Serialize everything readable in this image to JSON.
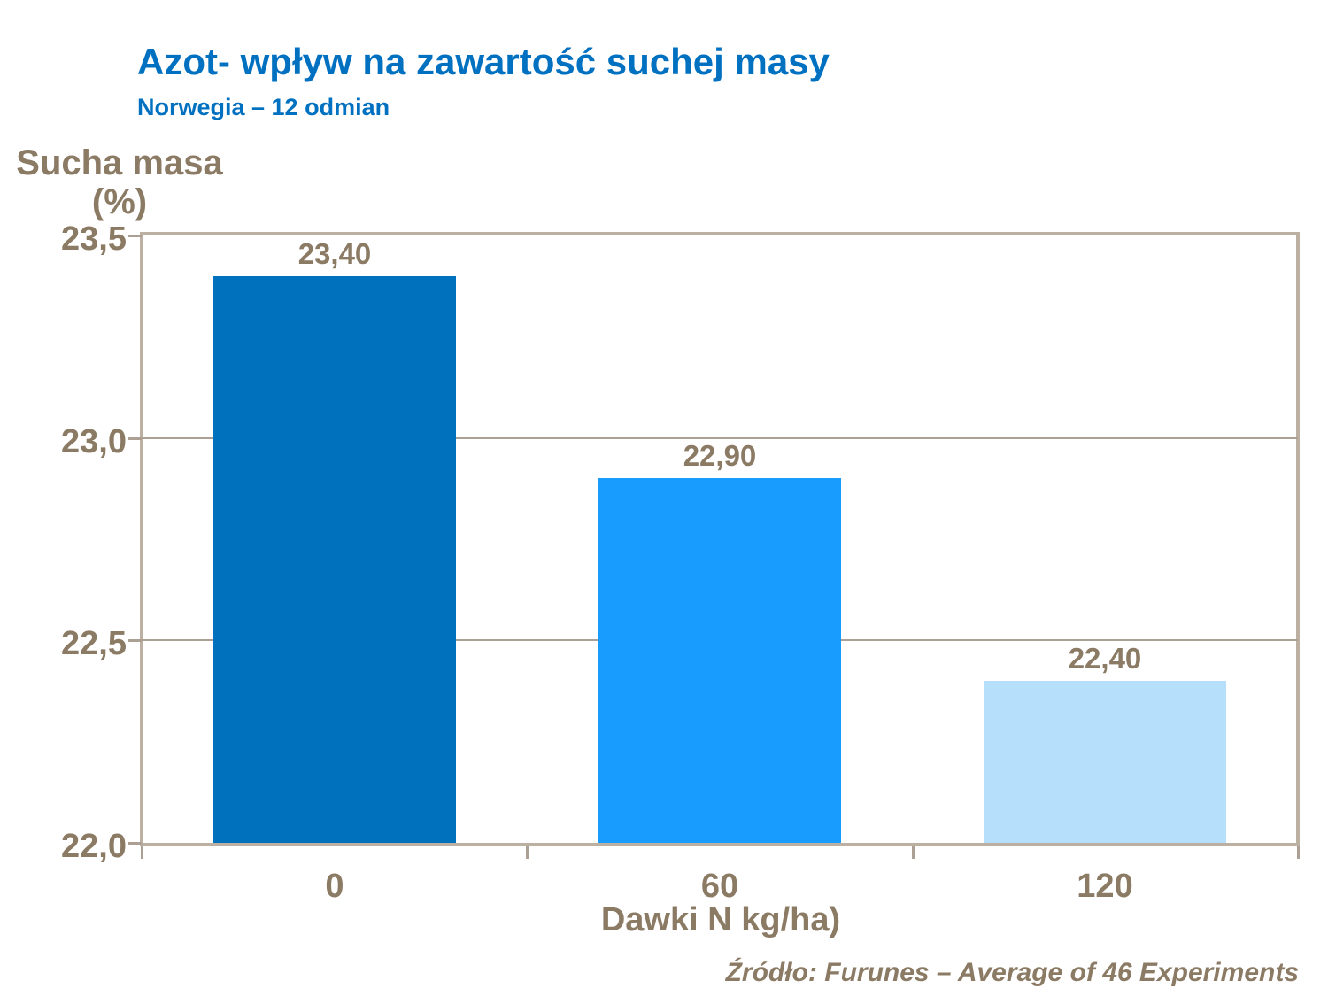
{
  "slide": {
    "title": "Azot- wpływ na zawartość suchej masy",
    "subtitle": "Norwegia – 12 odmian",
    "source": "Źródło: Furunes – Average of 46 Experiments"
  },
  "chart_data": {
    "type": "bar",
    "title": "Azot- wpływ na zawartość suchej masy",
    "subtitle": "Norwegia – 12 odmian",
    "categories": [
      "0",
      "60",
      "120"
    ],
    "values": [
      23.4,
      22.9,
      22.4
    ],
    "value_labels": [
      "23,40",
      "22,90",
      "22,40"
    ],
    "bar_colors": [
      "#0072bd",
      "#189cfe",
      "#b6dffb"
    ],
    "xlabel": "Dawki N kg/ha)",
    "ylabel_line1": "Sucha masa",
    "ylabel_line2": "(%)",
    "ylim": [
      22.0,
      23.5
    ],
    "yticks": [
      {
        "value": 23.5,
        "label": "23,5"
      },
      {
        "value": 23.0,
        "label": "23,0"
      },
      {
        "value": 22.5,
        "label": "22,5"
      },
      {
        "value": 22.0,
        "label": "22,0"
      }
    ],
    "gridline_values": [
      23.0,
      22.5
    ],
    "grid": "horizontal",
    "legend": "none"
  },
  "colors": {
    "title_blue": "#0070c0",
    "text_brown": "#8b7a64",
    "plot_border": "#bcb0a3",
    "gridline": "#aca095",
    "background": "#ffffff"
  }
}
